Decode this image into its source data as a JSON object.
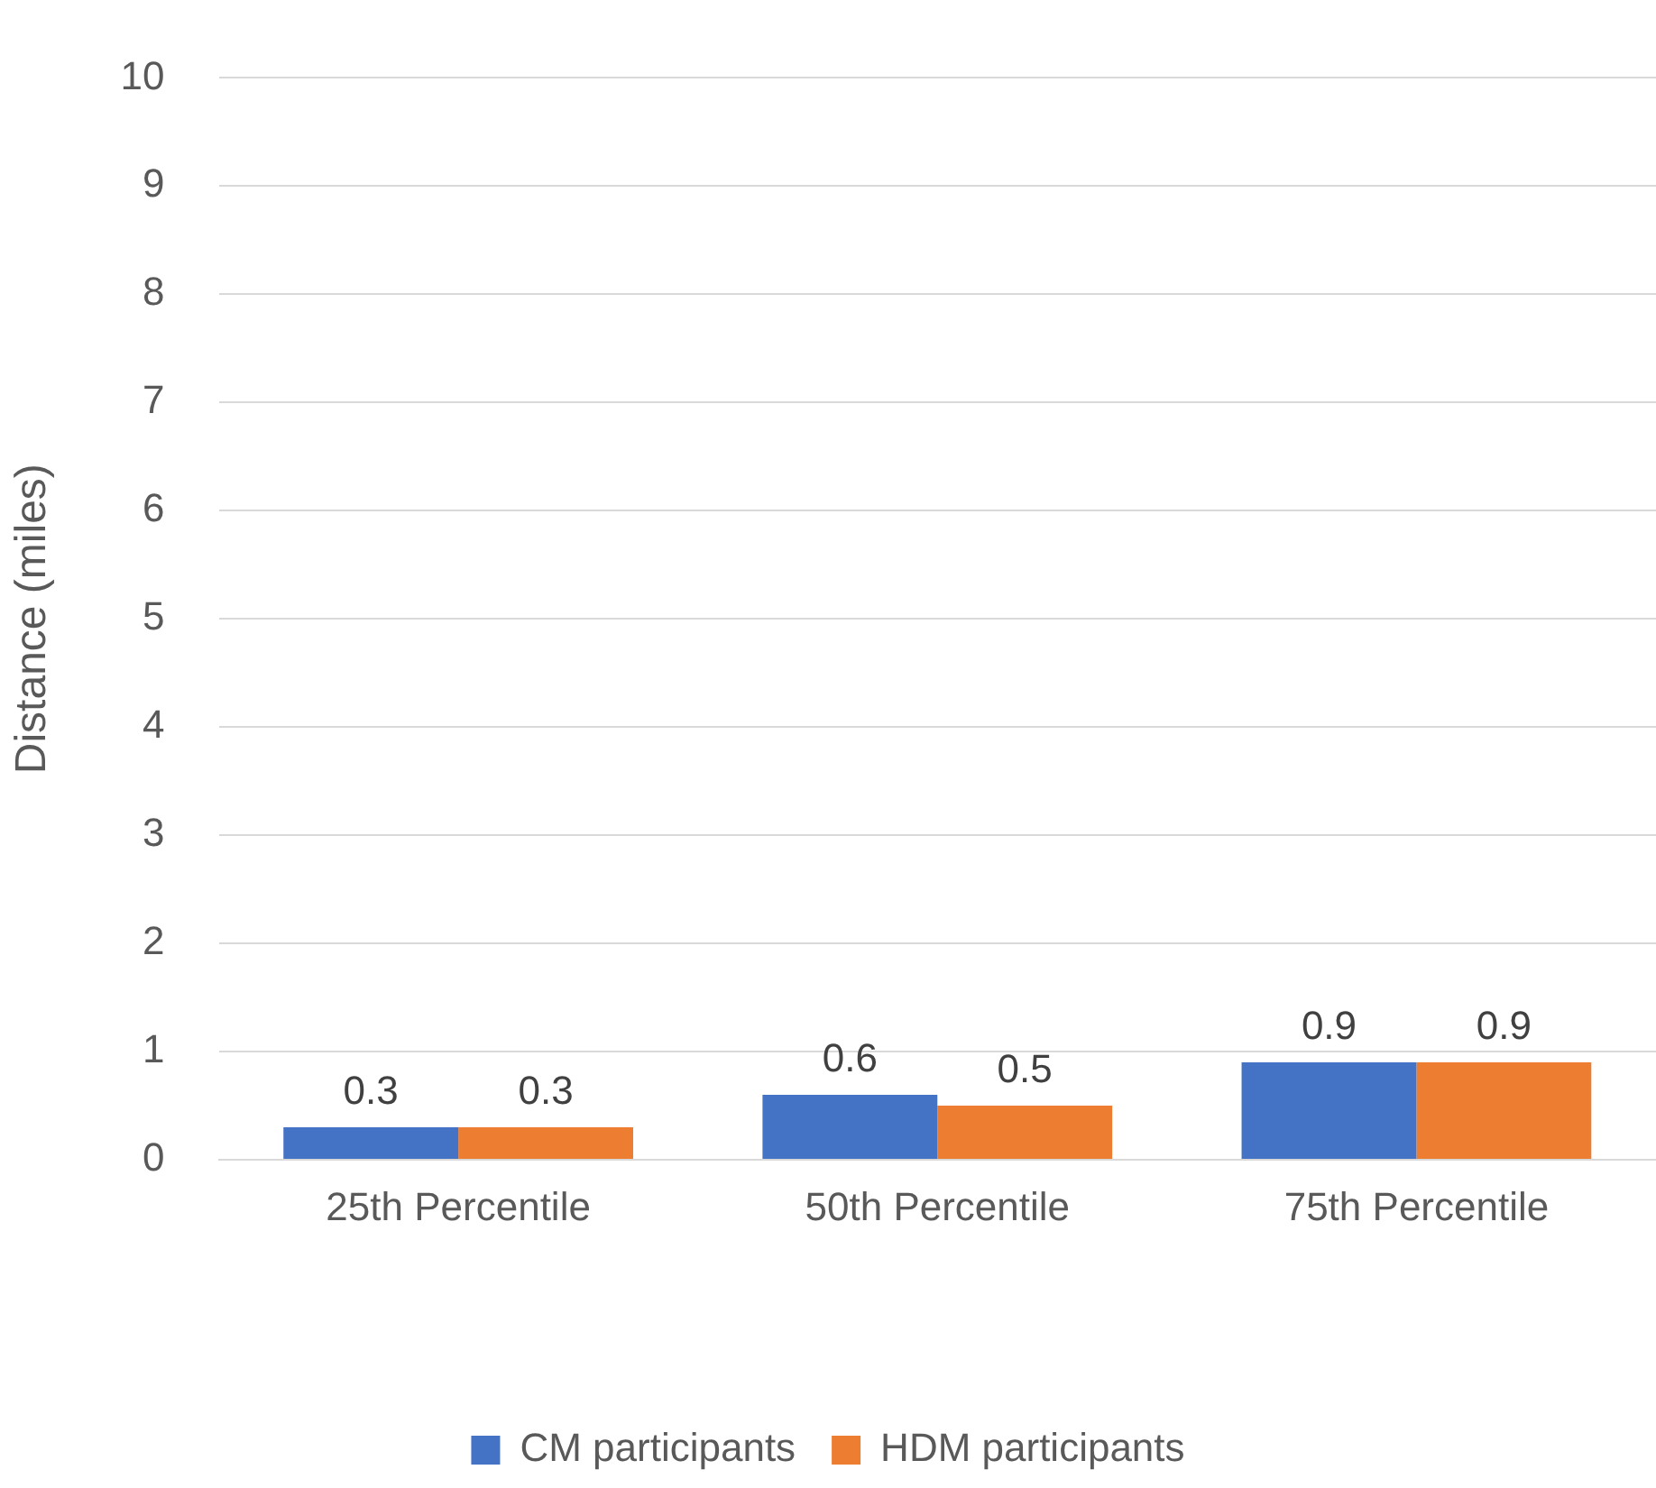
{
  "chart_data": {
    "type": "bar",
    "ylabel": "Distance (miles)",
    "categories": [
      "25th Percentile",
      "50th Percentile",
      "75th Percentile"
    ],
    "series": [
      {
        "name": "CM participants",
        "color": "#4472c4",
        "values": [
          0.3,
          0.6,
          0.9
        ]
      },
      {
        "name": "HDM participants",
        "color": "#ed7d31",
        "values": [
          0.3,
          0.5,
          0.9
        ]
      }
    ],
    "ylim": [
      0,
      10
    ],
    "yticks": [
      0,
      1,
      2,
      3,
      4,
      5,
      6,
      7,
      8,
      9,
      10
    ],
    "grid": "y",
    "legend": "bottom",
    "data_labels": true
  }
}
